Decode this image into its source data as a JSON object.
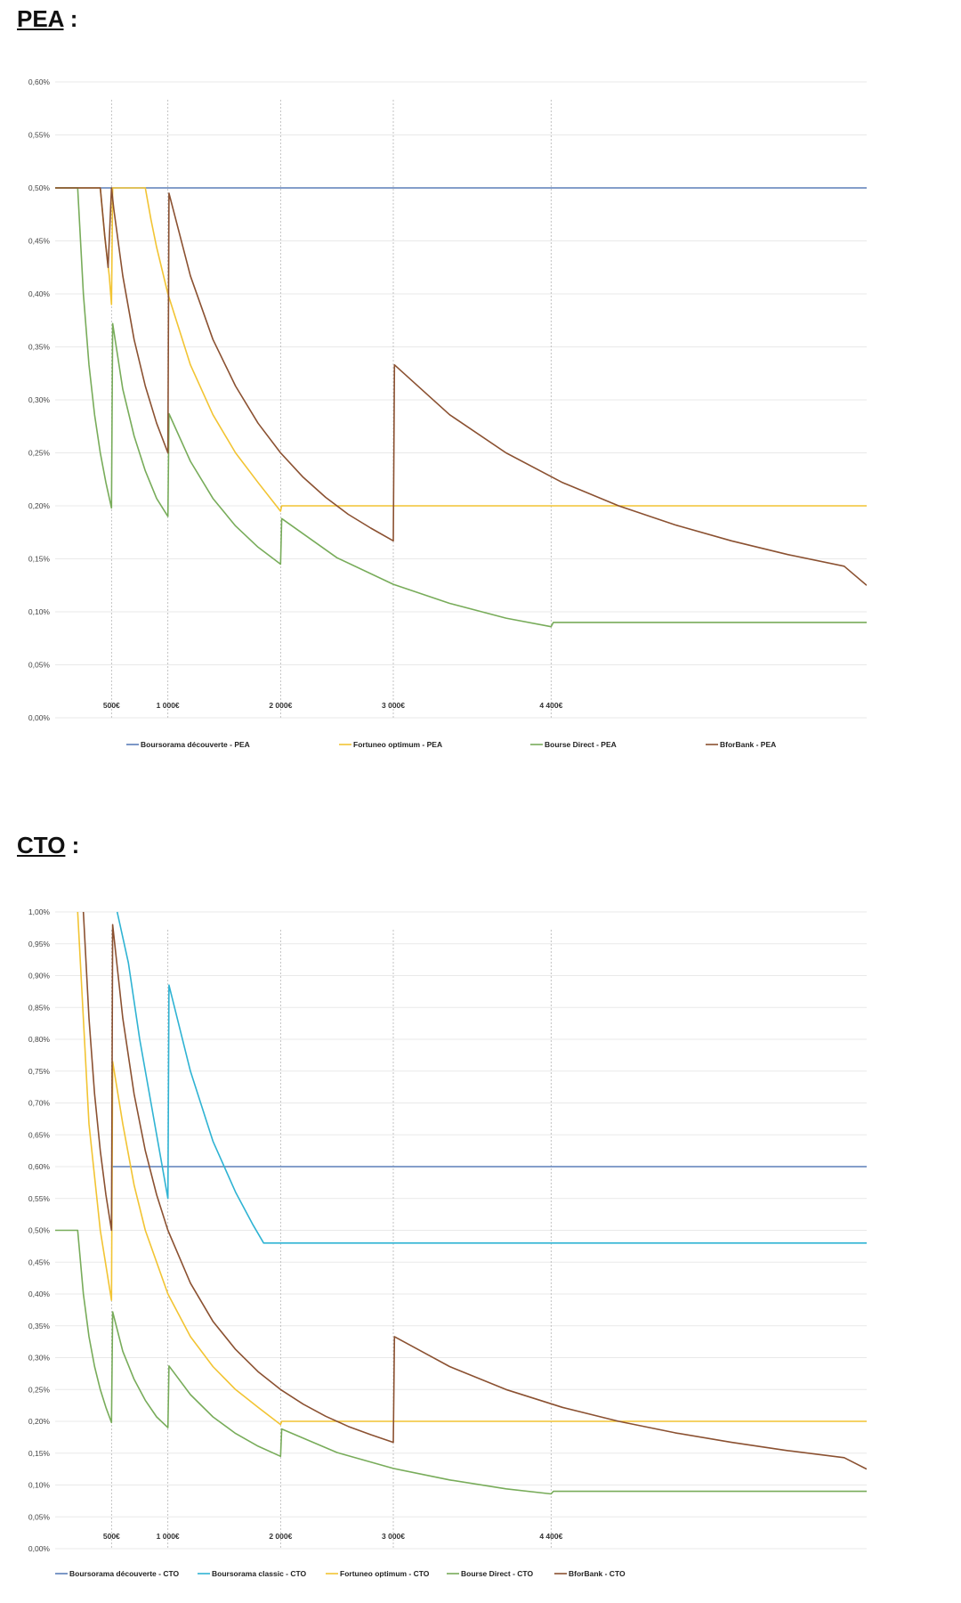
{
  "sections": [
    {
      "title": "PEA",
      "suffix": " :"
    },
    {
      "title": "CTO",
      "suffix": " :"
    }
  ],
  "chart_data": [
    {
      "type": "line",
      "title": "",
      "xlabel": "",
      "ylabel": "",
      "x_domain": [
        0,
        7200
      ],
      "ylim": [
        0,
        0.6
      ],
      "y_ticks": [
        0,
        0.05,
        0.1,
        0.15,
        0.2,
        0.25,
        0.3,
        0.35,
        0.4,
        0.45,
        0.5,
        0.55,
        0.6
      ],
      "y_tick_labels": [
        "0,00%",
        "0,05%",
        "0,10%",
        "0,15%",
        "0,20%",
        "0,25%",
        "0,30%",
        "0,35%",
        "0,40%",
        "0,45%",
        "0,50%",
        "0,55%",
        "0,60%"
      ],
      "x_ticks": [
        500,
        1000,
        2000,
        3000,
        4400
      ],
      "x_tick_labels": [
        "500€",
        "1 000€",
        "2 000€",
        "3 000€",
        "4 400€"
      ],
      "grid": true,
      "legend_position": "bottom",
      "series": [
        {
          "name": "Boursorama découverte - PEA",
          "color": "#5b7fb9",
          "points": [
            [
              0,
              0.5
            ],
            [
              7200,
              0.5
            ]
          ]
        },
        {
          "name": "Fortuneo optimum - PEA",
          "color": "#f2c433",
          "points": [
            [
              0,
              0.5
            ],
            [
              400,
              0.5
            ],
            [
              440,
              0.454
            ],
            [
              480,
              0.417
            ],
            [
              500,
              0.39
            ],
            [
              510,
              0.5
            ],
            [
              800,
              0.5
            ],
            [
              850,
              0.47
            ],
            [
              900,
              0.444
            ],
            [
              1000,
              0.4
            ],
            [
              1200,
              0.333
            ],
            [
              1400,
              0.286
            ],
            [
              1600,
              0.25
            ],
            [
              1800,
              0.222
            ],
            [
              2000,
              0.195
            ],
            [
              2010,
              0.2
            ],
            [
              7200,
              0.2
            ]
          ]
        },
        {
          "name": "Bourse Direct - PEA",
          "color": "#78ac5a",
          "points": [
            [
              0,
              0.5
            ],
            [
              200,
              0.5
            ],
            [
              250,
              0.4
            ],
            [
              300,
              0.333
            ],
            [
              350,
              0.286
            ],
            [
              400,
              0.25
            ],
            [
              450,
              0.222
            ],
            [
              500,
              0.198
            ],
            [
              510,
              0.372
            ],
            [
              600,
              0.31
            ],
            [
              700,
              0.266
            ],
            [
              800,
              0.233
            ],
            [
              900,
              0.207
            ],
            [
              1000,
              0.19
            ],
            [
              1010,
              0.287
            ],
            [
              1200,
              0.242
            ],
            [
              1400,
              0.207
            ],
            [
              1600,
              0.181
            ],
            [
              1800,
              0.161
            ],
            [
              2000,
              0.145
            ],
            [
              2010,
              0.188
            ],
            [
              2500,
              0.151
            ],
            [
              3000,
              0.126
            ],
            [
              3500,
              0.108
            ],
            [
              4000,
              0.094
            ],
            [
              4400,
              0.086
            ],
            [
              4420,
              0.09
            ],
            [
              7200,
              0.09
            ]
          ]
        },
        {
          "name": "BforBank - PEA",
          "color": "#8b5131",
          "points": [
            [
              0,
              0.5
            ],
            [
              400,
              0.5
            ],
            [
              440,
              0.455
            ],
            [
              470,
              0.425
            ],
            [
              500,
              0.5
            ],
            [
              520,
              0.48
            ],
            [
              600,
              0.417
            ],
            [
              700,
              0.357
            ],
            [
              800,
              0.313
            ],
            [
              900,
              0.278
            ],
            [
              1000,
              0.25
            ],
            [
              1010,
              0.495
            ],
            [
              1200,
              0.417
            ],
            [
              1400,
              0.357
            ],
            [
              1600,
              0.313
            ],
            [
              1800,
              0.278
            ],
            [
              2000,
              0.25
            ],
            [
              2200,
              0.227
            ],
            [
              2400,
              0.208
            ],
            [
              2600,
              0.192
            ],
            [
              2800,
              0.179
            ],
            [
              3000,
              0.167
            ],
            [
              3010,
              0.333
            ],
            [
              3500,
              0.286
            ],
            [
              4000,
              0.25
            ],
            [
              4500,
              0.222
            ],
            [
              5000,
              0.2
            ],
            [
              5500,
              0.182
            ],
            [
              6000,
              0.167
            ],
            [
              6500,
              0.154
            ],
            [
              7000,
              0.143
            ],
            [
              7200,
              0.125
            ]
          ]
        }
      ]
    },
    {
      "type": "line",
      "title": "",
      "xlabel": "",
      "ylabel": "",
      "x_domain": [
        0,
        7200
      ],
      "ylim": [
        0,
        1.0
      ],
      "y_ticks": [
        0,
        0.05,
        0.1,
        0.15,
        0.2,
        0.25,
        0.3,
        0.35,
        0.4,
        0.45,
        0.5,
        0.55,
        0.6,
        0.65,
        0.7,
        0.75,
        0.8,
        0.85,
        0.9,
        0.95,
        1.0
      ],
      "y_tick_labels": [
        "0,00%",
        "0,05%",
        "0,10%",
        "0,15%",
        "0,20%",
        "0,25%",
        "0,30%",
        "0,35%",
        "0,40%",
        "0,45%",
        "0,50%",
        "0,55%",
        "0,60%",
        "0,65%",
        "0,70%",
        "0,75%",
        "0,80%",
        "0,85%",
        "0,90%",
        "0,95%",
        "1,00%"
      ],
      "x_ticks": [
        500,
        1000,
        2000,
        3000,
        4400
      ],
      "x_tick_labels": [
        "500€",
        "1 000€",
        "2 000€",
        "3 000€",
        "4 400€"
      ],
      "grid": true,
      "legend_position": "bottom",
      "series": [
        {
          "name": "Boursorama découverte - CTO",
          "color": "#5b7fb9",
          "points": [
            [
              500,
              0.6
            ],
            [
              7200,
              0.6
            ]
          ]
        },
        {
          "name": "Boursorama classic - CTO",
          "color": "#2fb3d3",
          "points": [
            [
              550,
              1.0
            ],
            [
              650,
              0.92
            ],
            [
              750,
              0.8
            ],
            [
              850,
              0.7
            ],
            [
              1000,
              0.55
            ],
            [
              1010,
              0.885
            ],
            [
              1200,
              0.75
            ],
            [
              1400,
              0.64
            ],
            [
              1600,
              0.56
            ],
            [
              1750,
              0.51
            ],
            [
              1850,
              0.48
            ],
            [
              7200,
              0.48
            ]
          ]
        },
        {
          "name": "Fortuneo optimum - CTO",
          "color": "#f2c433",
          "points": [
            [
              200,
              1.0
            ],
            [
              300,
              0.667
            ],
            [
              400,
              0.5
            ],
            [
              500,
              0.39
            ],
            [
              510,
              0.765
            ],
            [
              600,
              0.667
            ],
            [
              700,
              0.571
            ],
            [
              800,
              0.5
            ],
            [
              1000,
              0.4
            ],
            [
              1200,
              0.333
            ],
            [
              1400,
              0.286
            ],
            [
              1600,
              0.25
            ],
            [
              1800,
              0.222
            ],
            [
              2000,
              0.195
            ],
            [
              2010,
              0.2
            ],
            [
              7200,
              0.2
            ]
          ]
        },
        {
          "name": "Bourse Direct - CTO",
          "color": "#78ac5a",
          "points": [
            [
              0,
              0.5
            ],
            [
              200,
              0.5
            ],
            [
              250,
              0.4
            ],
            [
              300,
              0.333
            ],
            [
              350,
              0.286
            ],
            [
              400,
              0.25
            ],
            [
              450,
              0.222
            ],
            [
              500,
              0.198
            ],
            [
              510,
              0.372
            ],
            [
              600,
              0.31
            ],
            [
              700,
              0.266
            ],
            [
              800,
              0.233
            ],
            [
              900,
              0.207
            ],
            [
              1000,
              0.19
            ],
            [
              1010,
              0.287
            ],
            [
              1200,
              0.242
            ],
            [
              1400,
              0.207
            ],
            [
              1600,
              0.181
            ],
            [
              1800,
              0.161
            ],
            [
              2000,
              0.145
            ],
            [
              2010,
              0.188
            ],
            [
              2500,
              0.151
            ],
            [
              3000,
              0.126
            ],
            [
              3500,
              0.108
            ],
            [
              4000,
              0.094
            ],
            [
              4400,
              0.086
            ],
            [
              4420,
              0.09
            ],
            [
              7200,
              0.09
            ]
          ]
        },
        {
          "name": "BforBank - CTO",
          "color": "#8b5131",
          "points": [
            [
              250,
              1.0
            ],
            [
              300,
              0.833
            ],
            [
              350,
              0.714
            ],
            [
              400,
              0.625
            ],
            [
              450,
              0.556
            ],
            [
              500,
              0.5
            ],
            [
              510,
              0.98
            ],
            [
              600,
              0.833
            ],
            [
              700,
              0.714
            ],
            [
              800,
              0.625
            ],
            [
              900,
              0.556
            ],
            [
              1000,
              0.5
            ],
            [
              1200,
              0.417
            ],
            [
              1400,
              0.357
            ],
            [
              1600,
              0.313
            ],
            [
              1800,
              0.278
            ],
            [
              2000,
              0.25
            ],
            [
              2200,
              0.227
            ],
            [
              2400,
              0.208
            ],
            [
              2600,
              0.192
            ],
            [
              2800,
              0.179
            ],
            [
              3000,
              0.167
            ],
            [
              3010,
              0.333
            ],
            [
              3500,
              0.286
            ],
            [
              4000,
              0.25
            ],
            [
              4500,
              0.222
            ],
            [
              5000,
              0.2
            ],
            [
              5500,
              0.182
            ],
            [
              6000,
              0.167
            ],
            [
              6500,
              0.154
            ],
            [
              7000,
              0.143
            ],
            [
              7200,
              0.125
            ]
          ]
        }
      ]
    }
  ]
}
